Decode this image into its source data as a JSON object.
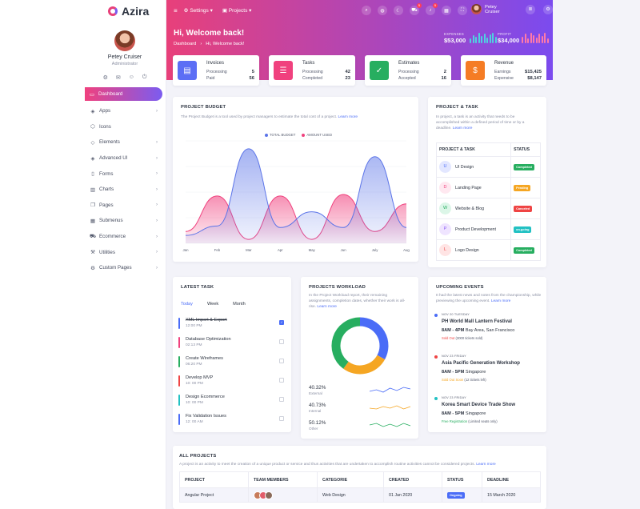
{
  "app": {
    "logo": "Azira"
  },
  "profile": {
    "name": "Petey Cruiser",
    "role": "Administrator"
  },
  "sidebar": {
    "items": [
      {
        "label": "Dashboard",
        "icon": "monitor-icon",
        "has_children": false
      },
      {
        "label": "Apps",
        "icon": "cube-icon",
        "has_children": true
      },
      {
        "label": "Icons",
        "icon": "hexagon-icon",
        "has_children": false
      },
      {
        "label": "Elements",
        "icon": "box-icon",
        "has_children": true
      },
      {
        "label": "Advanced UI",
        "icon": "layers-icon",
        "has_children": true
      },
      {
        "label": "Forms",
        "icon": "file-icon",
        "has_children": true
      },
      {
        "label": "Charts",
        "icon": "bar-chart-icon",
        "has_children": true
      },
      {
        "label": "Pages",
        "icon": "copy-icon",
        "has_children": true
      },
      {
        "label": "Submenus",
        "icon": "grid-icon",
        "has_children": true
      },
      {
        "label": "Ecommerce",
        "icon": "cart-icon",
        "has_children": true
      },
      {
        "label": "Utilities",
        "icon": "tool-icon",
        "has_children": true
      },
      {
        "label": "Custom Pages",
        "icon": "settings-icon",
        "has_children": true
      }
    ]
  },
  "topnav": {
    "settings_label": "Settings",
    "projects_label": "Projects",
    "user_name": "Petey Cruiser",
    "cart_badge": "5",
    "notif_badge": "5"
  },
  "header": {
    "welcome": "Hi, Welcome back!",
    "breadcrumb": {
      "root": "Dashboard",
      "current": "Hi, Welcome back!"
    },
    "expenses": {
      "label": "EXPENSES",
      "value": "$53,000"
    },
    "profit": {
      "label": "PROFIT",
      "value": "$34,000"
    }
  },
  "stat_cards": {
    "invoices": {
      "title": "Invoices",
      "r1_label": "Processing",
      "r1_value": "5",
      "r2_label": "Paid",
      "r2_value": "56"
    },
    "tasks": {
      "title": "Tasks",
      "r1_label": "Processing",
      "r1_value": "42",
      "r2_label": "Completed",
      "r2_value": "23"
    },
    "estimates": {
      "title": "Estimates",
      "r1_label": "Processing",
      "r1_value": "2",
      "r2_label": "Accepted",
      "r2_value": "16"
    },
    "revenue": {
      "title": "Revenue",
      "r1_label": "Earnings",
      "r1_value": "$15,425",
      "r2_label": "Expensive",
      "r2_value": "$8,147"
    }
  },
  "budget": {
    "title": "PROJECT BUDGET",
    "desc": "The Project Budget is a tool used by project managers to estimate the total cost of a project.",
    "learn_more": "Learn more"
  },
  "chart_data": {
    "type": "area",
    "x": [
      "Jan",
      "Feb",
      "Mar",
      "Apr",
      "May",
      "Jun",
      "July",
      "Aug"
    ],
    "series": [
      {
        "name": "TOTAL BUDGET",
        "values": [
          10,
          22,
          120,
          20,
          40,
          20,
          110,
          20
        ],
        "color": "#5b74e8"
      },
      {
        "name": "AMOUNT USED",
        "values": [
          15,
          60,
          5,
          60,
          5,
          62,
          15,
          50
        ],
        "color": "#f0417e"
      }
    ],
    "ylim": [
      0,
      130
    ]
  },
  "project_task": {
    "title": "PROJECT & TASK",
    "desc": "In project, a task is an activity that needs to be accomplished within a defined period of time or by a deadline.",
    "learn_more": "Learn more",
    "col1": "PROJECT & TASK",
    "col2": "STATUS",
    "rows": [
      {
        "letter": "U",
        "name": "UI Design",
        "status": "Completed",
        "color": "#27ae60",
        "letter_bg": "#e3e7ff",
        "letter_fg": "#4a6cf7"
      },
      {
        "letter": "D",
        "name": "Landing Page",
        "status": "Pending",
        "color": "#f5a623",
        "letter_bg": "#ffe8f0",
        "letter_fg": "#f0417e"
      },
      {
        "letter": "W",
        "name": "Website & Blog",
        "status": "Canceled",
        "color": "#ef4444",
        "letter_bg": "#dcf6e8",
        "letter_fg": "#27ae60"
      },
      {
        "letter": "P",
        "name": "Product Development",
        "status": "on-going",
        "color": "#22c1c3",
        "letter_bg": "#efe4ff",
        "letter_fg": "#8b5cf6"
      },
      {
        "letter": "L",
        "name": "Logo Design",
        "status": "Completed",
        "color": "#27ae60",
        "letter_bg": "#ffe4e4",
        "letter_fg": "#ef4444"
      }
    ]
  },
  "latest_task": {
    "title": "LATEST TASK",
    "tabs": [
      "Today",
      "Week",
      "Month"
    ],
    "tasks": [
      {
        "name": "XML Import & Export",
        "time": "12:00 PM",
        "color": "#4a6cf7",
        "done": true
      },
      {
        "name": "Database Optimization",
        "time": "02:13 PM",
        "color": "#f0417e",
        "done": false
      },
      {
        "name": "Create Wireframes",
        "time": "06:20 PM",
        "color": "#27ae60",
        "done": false
      },
      {
        "name": "Develop MVP",
        "time": "10: 00 PM",
        "color": "#ef4444",
        "done": false
      },
      {
        "name": "Design Ecommerce",
        "time": "10: 00 PM",
        "color": "#22c1c3",
        "done": false
      },
      {
        "name": "Fix Validation Issues",
        "time": "12: 00 AM",
        "color": "#4a6cf7",
        "done": false
      }
    ]
  },
  "workload": {
    "title": "PROJECTS WORKLOAD",
    "desc": "In the Project Workload report, their remaining assignments, completion dates, whether their work is all-rise.",
    "learn_more": "Learn more",
    "stats": [
      {
        "pct": "40.32%",
        "label": "External",
        "color": "#4a6cf7"
      },
      {
        "pct": "40.73%",
        "label": "Internal",
        "color": "#f5a623"
      },
      {
        "pct": "50.12%",
        "label": "Other",
        "color": "#27ae60"
      }
    ],
    "donut": [
      {
        "value": 33,
        "color": "#4a6cf7"
      },
      {
        "value": 27,
        "color": "#f5a623"
      },
      {
        "value": 40,
        "color": "#27ae60"
      }
    ]
  },
  "events": {
    "title": "UPCOMING EVENTS",
    "desc": "It had the latest news and notes from the championship, while previewing the upcoming event.",
    "learn_more": "Learn more",
    "items": [
      {
        "date": "NOV 20 TUESDAY",
        "title": "PH World Mall Lantern Festival",
        "time": "8AM - 4PM",
        "place": "Bay Area, San Francisco",
        "note_hi": "Sold Out",
        "note": "(3000 tickets sold)",
        "color": "#4a6cf7",
        "note_color": "#ef4444"
      },
      {
        "date": "NOV 23 FRIDAY",
        "title": "Asia Pacific Generation Workshop",
        "time": "8AM - 5PM",
        "place": "Singapore",
        "note_hi": "Sold Out Soon",
        "note": "(12 tickets left)",
        "color": "#ef4444",
        "note_color": "#f5a623"
      },
      {
        "date": "NOV 23 FRIDAY",
        "title": "Korea Smart Device Trade Show",
        "time": "8AM - 5PM",
        "place": "Singapore",
        "note_hi": "Free Registration",
        "note": "(Limited seats only)",
        "color": "#22c1c3",
        "note_color": "#27ae60"
      }
    ]
  },
  "all_projects": {
    "title": "ALL PROJECTS",
    "desc": "A project is an activity to meet the creation of a unique product or service and thus activities that are undertaken to accomplish routine activities cannot be considered projects.",
    "learn_more": "Learn more",
    "cols": [
      "PROJECT",
      "TEAM MEMBERS",
      "CATEGORIE",
      "CREATED",
      "STATUS",
      "DEADLINE"
    ],
    "rows": [
      {
        "project": "Angular Project",
        "category": "Web Design",
        "created": "01 Jan 2020",
        "status": "Ongoing",
        "deadline": "15 March 2020"
      }
    ]
  }
}
